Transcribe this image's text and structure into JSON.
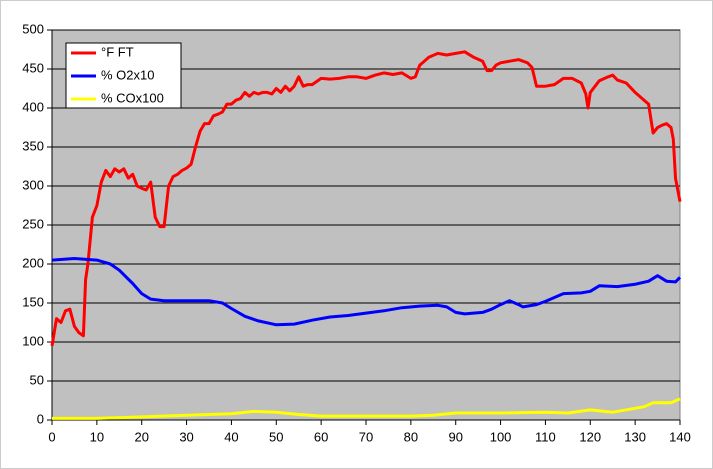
{
  "chart_data": {
    "type": "line",
    "xlim": [
      0,
      140
    ],
    "xticks": [
      0,
      10,
      20,
      30,
      40,
      50,
      60,
      70,
      80,
      90,
      100,
      110,
      120,
      130,
      140
    ],
    "ylim": [
      0,
      500
    ],
    "yticks": [
      0,
      50,
      100,
      150,
      200,
      250,
      300,
      350,
      400,
      450,
      500
    ],
    "grid": true,
    "legend": "top-left",
    "series": [
      {
        "name": "°F FT",
        "color": "#ff0000",
        "x": [
          0,
          1,
          2,
          3,
          4,
          5,
          6,
          7,
          7.5,
          8,
          9,
          10,
          11,
          12,
          13,
          14,
          15,
          16,
          17,
          18,
          19,
          20,
          21,
          22,
          23,
          24,
          25,
          26,
          27,
          28,
          29,
          30,
          31,
          32,
          33,
          34,
          35,
          36,
          37,
          38,
          39,
          40,
          41,
          42,
          43,
          44,
          45,
          46,
          47,
          48,
          49,
          50,
          51,
          52,
          53,
          54,
          55,
          56,
          57,
          58,
          60,
          62,
          64,
          66,
          68,
          70,
          72,
          74,
          76,
          78,
          80,
          81,
          82,
          83,
          84,
          86,
          88,
          90,
          92,
          94,
          96,
          97,
          98,
          99,
          100,
          102,
          104,
          106,
          107,
          108,
          110,
          112,
          114,
          116,
          118,
          119,
          119.5,
          120,
          122,
          124,
          125,
          126,
          128,
          130,
          132,
          133,
          134,
          135,
          136,
          137,
          138,
          138.5,
          139,
          140
        ],
        "values": [
          95,
          130,
          125,
          140,
          142,
          120,
          112,
          108,
          180,
          200,
          260,
          275,
          305,
          320,
          312,
          322,
          318,
          322,
          310,
          315,
          300,
          297,
          295,
          305,
          260,
          248,
          248,
          300,
          312,
          315,
          320,
          323,
          328,
          350,
          370,
          380,
          380,
          390,
          392,
          395,
          405,
          405,
          410,
          412,
          420,
          415,
          420,
          418,
          420,
          420,
          418,
          425,
          420,
          428,
          422,
          428,
          440,
          428,
          430,
          430,
          438,
          437,
          438,
          440,
          440,
          438,
          442,
          445,
          443,
          445,
          438,
          440,
          455,
          460,
          465,
          470,
          468,
          470,
          472,
          465,
          460,
          448,
          448,
          455,
          458,
          460,
          462,
          458,
          452,
          428,
          428,
          430,
          438,
          438,
          432,
          418,
          400,
          420,
          435,
          440,
          442,
          436,
          432,
          420,
          410,
          405,
          368,
          375,
          378,
          380,
          375,
          360,
          310,
          280
        ]
      },
      {
        "name": "% O2x10",
        "color": "#0000ff",
        "x": [
          0,
          5,
          10,
          13,
          15,
          18,
          20,
          22,
          25,
          30,
          35,
          38,
          40,
          43,
          46,
          50,
          54,
          58,
          62,
          66,
          70,
          74,
          78,
          82,
          86,
          88,
          90,
          92,
          96,
          98,
          100,
          102,
          104,
          105,
          108,
          110,
          114,
          118,
          120,
          122,
          126,
          130,
          133,
          135,
          137,
          139,
          140
        ],
        "values": [
          205,
          207,
          205,
          200,
          192,
          175,
          162,
          155,
          153,
          153,
          153,
          150,
          143,
          133,
          127,
          122,
          123,
          128,
          132,
          134,
          137,
          140,
          144,
          146,
          147,
          145,
          138,
          136,
          138,
          142,
          148,
          153,
          148,
          145,
          148,
          152,
          162,
          163,
          165,
          172,
          171,
          174,
          178,
          185,
          178,
          177,
          183
        ]
      },
      {
        "name": "% COx100",
        "color": "#ffff00",
        "x": [
          0,
          10,
          20,
          30,
          40,
          45,
          50,
          55,
          60,
          70,
          80,
          85,
          90,
          100,
          110,
          115,
          120,
          125,
          130,
          132,
          134,
          138,
          140
        ],
        "values": [
          2,
          2,
          4,
          6,
          8,
          11,
          10,
          7,
          5,
          5,
          5,
          6,
          9,
          9,
          10,
          9,
          13,
          10,
          15,
          17,
          22,
          22,
          27
        ]
      }
    ]
  }
}
